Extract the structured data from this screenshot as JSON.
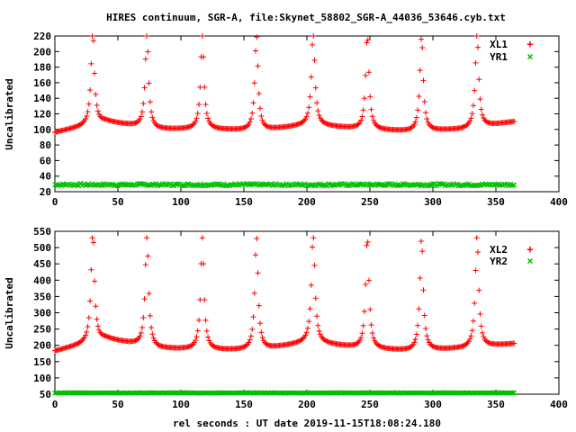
{
  "title": "HIRES continuum, SGR-A, file:Skynet_58802_SGR-A_44036_53646.cyb.txt",
  "xlabel": "rel seconds : UT date 2019-11-15T18:08:24.180",
  "colors": {
    "left_series": "#ff0000",
    "right_series": "#00c000"
  },
  "chart_data": [
    {
      "type": "scatter",
      "ylabel": "Uncalibrated",
      "xlim": [
        0,
        400
      ],
      "ylim": [
        20,
        220
      ],
      "xticks": [
        "0",
        "50",
        "100",
        "150",
        "200",
        "250",
        "300",
        "350",
        "400"
      ],
      "yticks": [
        "20",
        "40",
        "60",
        "80",
        "100",
        "120",
        "140",
        "160",
        "180",
        "200",
        "220"
      ],
      "legend": "top-right",
      "peaks_x": [
        30,
        73,
        117,
        160,
        205,
        248,
        291,
        335
      ],
      "series": [
        {
          "name": "XL1",
          "marker": "+",
          "x_range": [
            0,
            365
          ],
          "baseline": 98,
          "peak": 220,
          "valleys": [
            96,
            110,
            100,
            100,
            98,
            106,
            100,
            97,
            100,
            110
          ]
        },
        {
          "name": "YR1",
          "marker": "x",
          "x_range": [
            0,
            365
          ],
          "baseline": 29,
          "noise": 1.5
        }
      ]
    },
    {
      "type": "scatter",
      "ylabel": "Uncalibrated",
      "xlim": [
        0,
        400
      ],
      "ylim": [
        50,
        550
      ],
      "xticks": [
        "0",
        "50",
        "100",
        "150",
        "200",
        "250",
        "300",
        "350",
        "400"
      ],
      "yticks": [
        "50",
        "100",
        "150",
        "200",
        "250",
        "300",
        "350",
        "400",
        "450",
        "500",
        "550"
      ],
      "legend": "top-right",
      "peaks_x": [
        30,
        73,
        117,
        160,
        205,
        248,
        291,
        335
      ],
      "series": [
        {
          "name": "XL2",
          "marker": "+",
          "x_range": [
            0,
            365
          ],
          "baseline": 183,
          "peak": 530,
          "valleys": [
            182,
            220,
            190,
            185,
            185,
            210,
            190,
            182,
            190,
            205
          ]
        },
        {
          "name": "YR2",
          "marker": "x",
          "x_range": [
            0,
            365
          ],
          "baseline": 54,
          "noise": 0.8
        }
      ]
    }
  ]
}
